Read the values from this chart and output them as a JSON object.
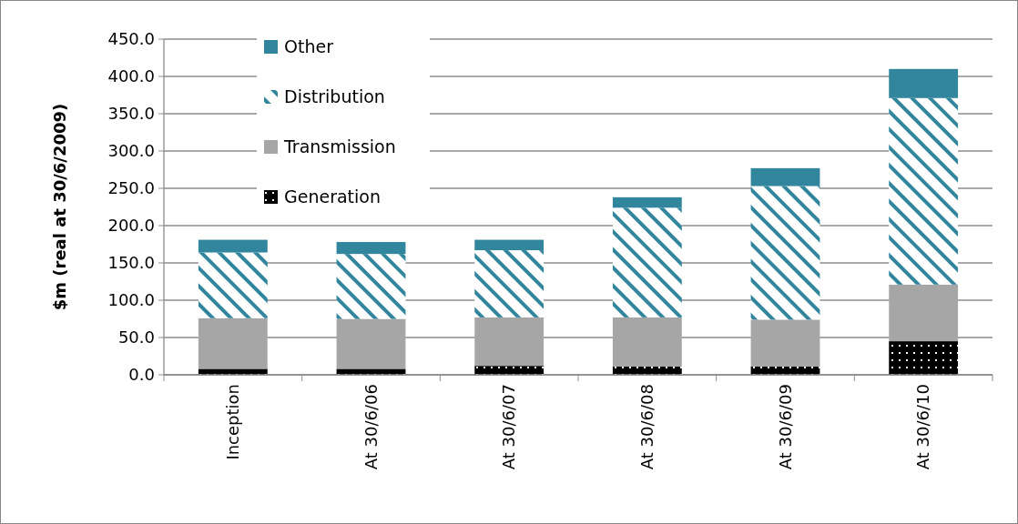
{
  "chart_data": {
    "type": "bar",
    "stacked": true,
    "ylabel": "$m (real at 30/6/2009)",
    "categories": [
      "Inception",
      "At 30/6/06",
      "At 30/6/07",
      "At 30/6/08",
      "At 30/6/09",
      "At 30/6/10"
    ],
    "series": [
      {
        "name": "Generation",
        "color": "#000000",
        "values": [
          8,
          8,
          12,
          11,
          11,
          45
        ]
      },
      {
        "name": "Transmission",
        "color": "#a6a6a6",
        "values": [
          68,
          67,
          65,
          66,
          63,
          76
        ]
      },
      {
        "name": "Distribution",
        "color": "#31859c",
        "values": [
          88,
          87,
          90,
          147,
          179,
          250
        ]
      },
      {
        "name": "Other",
        "color": "#31859c",
        "values": [
          17,
          16,
          14,
          14,
          24,
          39
        ]
      }
    ],
    "ylim": [
      0,
      450
    ],
    "yticks": [
      {
        "value": 0,
        "label": "0.0"
      },
      {
        "value": 50,
        "label": "50.0"
      },
      {
        "value": 100,
        "label": "100.0"
      },
      {
        "value": 150,
        "label": "150.0"
      },
      {
        "value": 200,
        "label": "200.0"
      },
      {
        "value": 250,
        "label": "250.0"
      },
      {
        "value": 300,
        "label": "300.0"
      },
      {
        "value": 350,
        "label": "350.0"
      },
      {
        "value": 400,
        "label": "400.0"
      },
      {
        "value": 450,
        "label": "450.0"
      }
    ],
    "grid": "y",
    "legend": "top left"
  }
}
